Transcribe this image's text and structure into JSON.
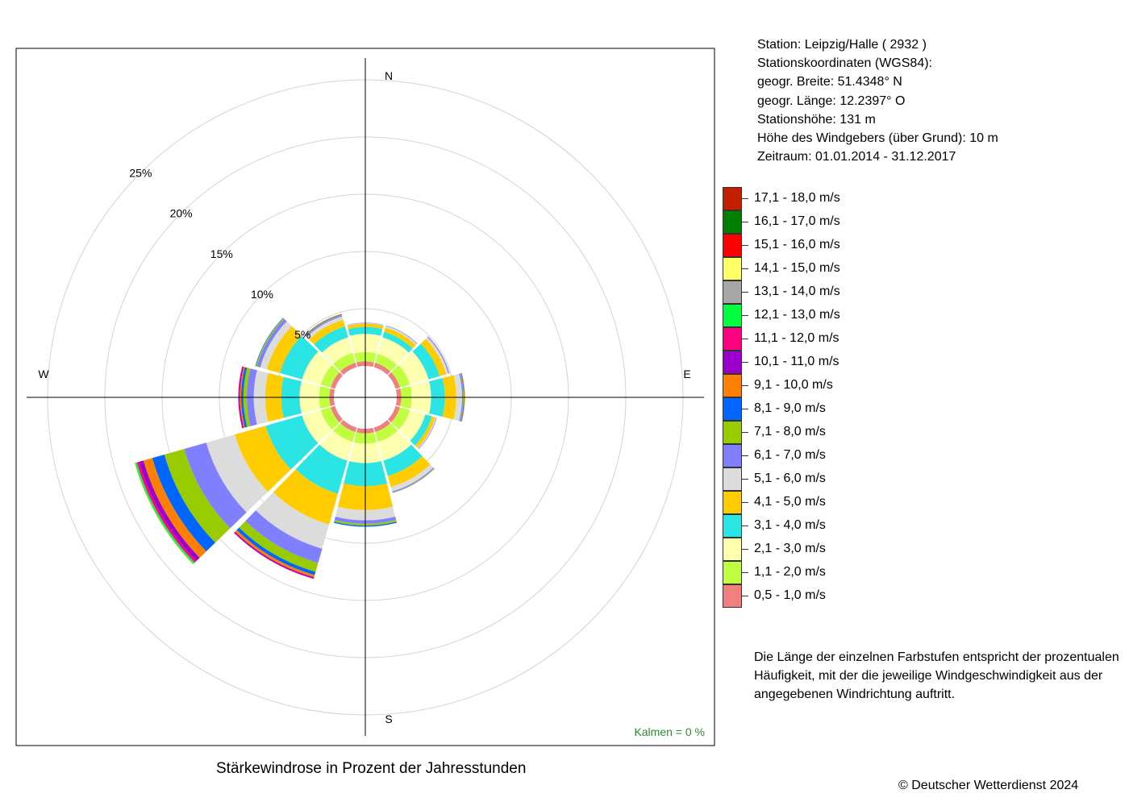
{
  "station_info": [
    "Station:  Leipzig/Halle  ( 2932 )",
    "Stationskoordinaten (WGS84):",
    "geogr. Breite: 51.4348° N",
    "geogr. Länge: 12.2397° O",
    "Stationshöhe: 131 m",
    "Höhe des Windgebers (über Grund): 10 m",
    "Zeitraum: 01.01.2014 - 31.12.2017"
  ],
  "note": "Die Länge der einzelnen Farbstufen entspricht der prozentualen Häufigkeit, mit der die jeweilige Windgeschwindigkeit aus der angegebenen Windrichtung auftritt.",
  "copyright": "© Deutscher Wetterdienst  2024",
  "chart_data": {
    "type": "windrose",
    "title": "Stärkewindrose in Prozent der Jahresstunden",
    "calm_label": "Kalmen  =  0 %",
    "directions": [
      "N",
      "E",
      "S",
      "W"
    ],
    "ring_labels": [
      "5%",
      "10%",
      "15%",
      "20%",
      "25%"
    ],
    "ring_values": [
      5,
      10,
      15,
      20,
      25
    ],
    "sector_width_deg": 30,
    "sectors": [
      0,
      30,
      60,
      90,
      120,
      150,
      180,
      210,
      240,
      270,
      300,
      330
    ],
    "speed_classes": [
      {
        "label": "0,5 - 1,0 m/s",
        "color": "#F08080"
      },
      {
        "label": "1,1 - 2,0 m/s",
        "color": "#BFFF3F"
      },
      {
        "label": "2,1 - 3,0 m/s",
        "color": "#FFFFB0"
      },
      {
        "label": "3,1 - 4,0 m/s",
        "color": "#2BE4E4"
      },
      {
        "label": "4,1 - 5,0 m/s",
        "color": "#FFCC00"
      },
      {
        "label": "5,1 - 6,0 m/s",
        "color": "#DCDCDC"
      },
      {
        "label": "6,1 - 7,0 m/s",
        "color": "#8080FF"
      },
      {
        "label": "7,1 - 8,0 m/s",
        "color": "#99CC00"
      },
      {
        "label": "8,1 - 9,0 m/s",
        "color": "#0066FF"
      },
      {
        "label": "9,1 - 10,0 m/s",
        "color": "#FF8000"
      },
      {
        "label": "10,1 - 11,0 m/s",
        "color": "#9900CC"
      },
      {
        "label": "11,1 - 12,0 m/s",
        "color": "#FF0080"
      },
      {
        "label": "12,1 - 13,0 m/s",
        "color": "#00FF40"
      },
      {
        "label": "13,1 - 14,0 m/s",
        "color": "#A6A6A6"
      },
      {
        "label": "14,1 - 15,0 m/s",
        "color": "#FFFF66"
      },
      {
        "label": "15,1 - 16,0 m/s",
        "color": "#FF0000"
      },
      {
        "label": "16,1 - 17,0 m/s",
        "color": "#007F00"
      },
      {
        "label": "17,1 - 18,0 m/s",
        "color": "#C41E00"
      }
    ],
    "cumulative_percent": [
      [
        0.4,
        1.2,
        2.8,
        3.4,
        3.7,
        3.75,
        3.78
      ],
      [
        0.4,
        1.2,
        2.7,
        3.2,
        3.6,
        3.75,
        3.8
      ],
      [
        0.4,
        1.3,
        3.0,
        4.0,
        4.6,
        4.8,
        4.9
      ],
      [
        0.4,
        1.3,
        3.0,
        4.2,
        5.2,
        5.7,
        5.8,
        5.85,
        5.9,
        5.95
      ],
      [
        0.4,
        1.3,
        2.7,
        3.3,
        3.6,
        3.7,
        3.75
      ],
      [
        0.4,
        1.3,
        3.0,
        4.4,
        5.4,
        5.8,
        5.9,
        5.95
      ],
      [
        0.4,
        1.3,
        3.0,
        5.0,
        7.1,
        8.0,
        8.3,
        8.45,
        8.55
      ],
      [
        0.4,
        1.3,
        3.0,
        6.0,
        8.8,
        11.0,
        12.3,
        13.1,
        13.4,
        13.6,
        13.7,
        13.75
      ],
      [
        0.4,
        1.3,
        3.0,
        6.3,
        9.1,
        11.7,
        13.7,
        15.5,
        16.6,
        17.4,
        17.8,
        18.0,
        18.15,
        18.2,
        18.25
      ],
      [
        0.4,
        1.3,
        3.0,
        4.6,
        6.0,
        7.0,
        7.6,
        7.9,
        8.1,
        8.2,
        8.3,
        8.35
      ],
      [
        0.4,
        1.3,
        3.0,
        5.0,
        6.2,
        6.8,
        7.1,
        7.2,
        7.25
      ],
      [
        0.4,
        1.3,
        2.7,
        3.7,
        4.3,
        4.6,
        4.7,
        4.75,
        4.8,
        4.85
      ]
    ]
  }
}
